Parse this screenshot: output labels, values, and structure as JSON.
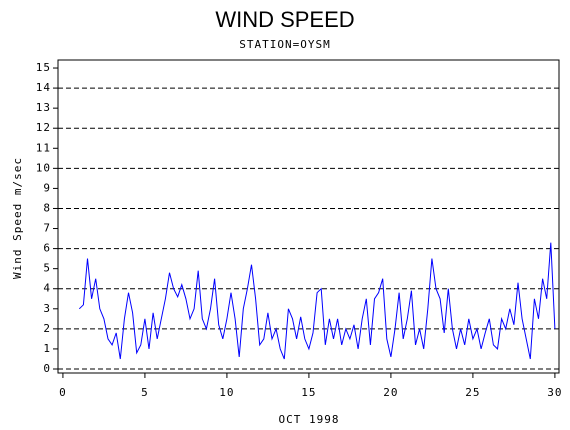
{
  "chart_data": {
    "type": "line",
    "title": "WIND SPEED",
    "subtitle": "STATION=OYSM",
    "x_label": "OCT 1998",
    "y_label": "Wind Speed m/sec",
    "xlim": [
      -0.3,
      30.25
    ],
    "ylim": [
      -0.2,
      15.4
    ],
    "xticks": [
      0,
      5,
      10,
      15,
      20,
      25,
      30
    ],
    "yticks": [
      0,
      1,
      2,
      3,
      4,
      5,
      6,
      7,
      8,
      9,
      10,
      11,
      12,
      13,
      14,
      15
    ],
    "ygrid": [
      0,
      2,
      4,
      6,
      8,
      10,
      12,
      14
    ],
    "grid_style": "dashed",
    "series": [
      {
        "color": "#0000ff",
        "x": [
          1,
          1.25,
          1.5,
          1.75,
          2,
          2.25,
          2.5,
          2.75,
          3,
          3.25,
          3.5,
          3.75,
          4,
          4.25,
          4.5,
          4.75,
          5,
          5.25,
          5.5,
          5.75,
          6,
          6.25,
          6.5,
          6.75,
          7,
          7.25,
          7.5,
          7.75,
          8,
          8.25,
          8.5,
          8.75,
          9,
          9.25,
          9.5,
          9.75,
          10,
          10.25,
          10.5,
          10.75,
          11,
          11.25,
          11.5,
          11.75,
          12,
          12.25,
          12.5,
          12.75,
          13,
          13.25,
          13.5,
          13.75,
          14,
          14.25,
          14.5,
          14.75,
          15,
          15.25,
          15.5,
          15.75,
          16,
          16.25,
          16.5,
          16.75,
          17,
          17.25,
          17.5,
          17.75,
          18,
          18.25,
          18.5,
          18.75,
          19,
          19.25,
          19.5,
          19.75,
          20,
          20.25,
          20.5,
          20.75,
          21,
          21.25,
          21.5,
          21.75,
          22,
          22.25,
          22.5,
          22.75,
          23,
          23.25,
          23.5,
          23.75,
          24,
          24.25,
          24.5,
          24.75,
          25,
          25.25,
          25.5,
          25.75,
          26,
          26.25,
          26.5,
          26.75,
          27,
          27.25,
          27.5,
          27.75,
          28,
          28.25,
          28.5,
          28.75,
          29,
          29.25,
          29.5,
          29.75,
          30
        ],
        "values": [
          3.0,
          3.2,
          5.5,
          3.5,
          4.5,
          3.0,
          2.5,
          1.5,
          1.2,
          1.8,
          0.5,
          2.5,
          3.8,
          2.8,
          0.8,
          1.2,
          2.5,
          1.0,
          2.8,
          1.5,
          2.5,
          3.5,
          4.8,
          4.0,
          3.6,
          4.2,
          3.5,
          2.5,
          3.0,
          4.9,
          2.5,
          2.0,
          3.0,
          4.5,
          2.2,
          1.5,
          2.5,
          3.8,
          2.5,
          0.6,
          3.0,
          4.0,
          5.2,
          3.5,
          1.2,
          1.5,
          2.8,
          1.5,
          2.0,
          1.0,
          0.5,
          3.0,
          2.5,
          1.5,
          2.6,
          1.5,
          1.0,
          1.8,
          3.8,
          4.0,
          1.2,
          2.5,
          1.5,
          2.5,
          1.2,
          2.0,
          1.5,
          2.2,
          1.0,
          2.5,
          3.5,
          1.2,
          3.5,
          3.8,
          4.5,
          1.5,
          0.6,
          2.0,
          3.8,
          1.5,
          2.5,
          3.9,
          1.2,
          2.0,
          1.0,
          3.0,
          5.5,
          4.0,
          3.5,
          1.8,
          4.0,
          2.0,
          1.0,
          2.0,
          1.2,
          2.5,
          1.5,
          2.0,
          1.0,
          1.8,
          2.5,
          1.2,
          1.0,
          2.5,
          2.0,
          3.0,
          2.2,
          4.3,
          2.5,
          1.5,
          0.5,
          3.5,
          2.5,
          4.5,
          3.5,
          6.3,
          2.0
        ]
      }
    ]
  }
}
